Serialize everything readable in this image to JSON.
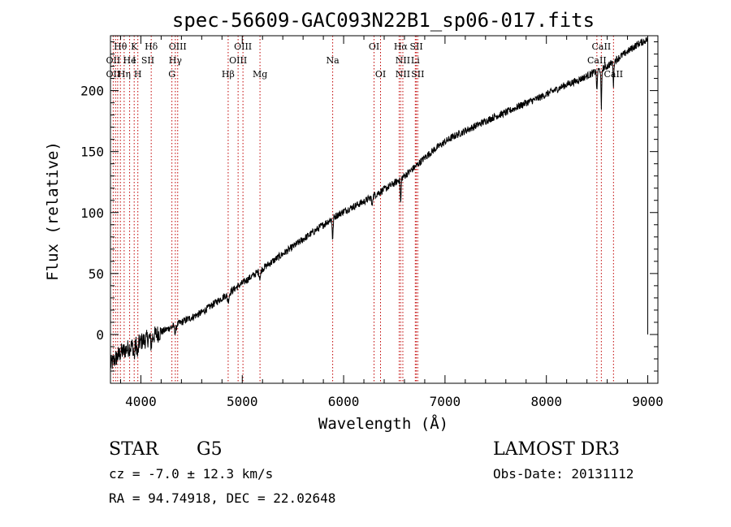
{
  "chart_data": {
    "type": "line",
    "title": "spec-56609-GAC093N22B1_sp06-017.fits",
    "xlabel": "Wavelength (Å)",
    "ylabel": "Flux (relative)",
    "xlim": [
      3700,
      9100
    ],
    "ylim": [
      -40,
      245
    ],
    "xticks": [
      4000,
      5000,
      6000,
      7000,
      8000,
      9000
    ],
    "yticks": [
      0,
      50,
      100,
      150,
      200
    ],
    "grid": false,
    "series": [
      {
        "name": "spectrum",
        "color": "#000000",
        "anchors": [
          [
            3700,
            -25
          ],
          [
            3750,
            -20
          ],
          [
            3800,
            -15
          ],
          [
            3900,
            -10
          ],
          [
            4000,
            -6
          ],
          [
            4100,
            -2
          ],
          [
            4200,
            2
          ],
          [
            4300,
            6
          ],
          [
            4400,
            10
          ],
          [
            4500,
            14
          ],
          [
            4600,
            18
          ],
          [
            4700,
            24
          ],
          [
            4800,
            30
          ],
          [
            4900,
            36
          ],
          [
            5000,
            42
          ],
          [
            5100,
            48
          ],
          [
            5200,
            54
          ],
          [
            5300,
            60
          ],
          [
            5400,
            66
          ],
          [
            5500,
            72
          ],
          [
            5600,
            78
          ],
          [
            5700,
            84
          ],
          [
            5800,
            90
          ],
          [
            5900,
            96
          ],
          [
            6000,
            101
          ],
          [
            6100,
            105
          ],
          [
            6200,
            109
          ],
          [
            6300,
            114
          ],
          [
            6400,
            119
          ],
          [
            6500,
            124
          ],
          [
            6600,
            130
          ],
          [
            6700,
            137
          ],
          [
            6800,
            145
          ],
          [
            6900,
            152
          ],
          [
            7000,
            158
          ],
          [
            7100,
            163
          ],
          [
            7200,
            167
          ],
          [
            7300,
            171
          ],
          [
            7400,
            175
          ],
          [
            7500,
            179
          ],
          [
            7600,
            182
          ],
          [
            7700,
            186
          ],
          [
            7800,
            190
          ],
          [
            7900,
            193
          ],
          [
            8000,
            197
          ],
          [
            8100,
            201
          ],
          [
            8200,
            205
          ],
          [
            8300,
            208
          ],
          [
            8400,
            212
          ],
          [
            8500,
            216
          ],
          [
            8600,
            220
          ],
          [
            8700,
            226
          ],
          [
            8800,
            232
          ],
          [
            8900,
            238
          ],
          [
            8950,
            240
          ],
          [
            9000,
            242
          ]
        ],
        "absorption": [
          {
            "wave": 3934,
            "depth": 10,
            "width": 8
          },
          {
            "wave": 3969,
            "depth": 10,
            "width": 8
          },
          {
            "wave": 4102,
            "depth": 6,
            "width": 10
          },
          {
            "wave": 4340,
            "depth": 6,
            "width": 10
          },
          {
            "wave": 4861,
            "depth": 6,
            "width": 12
          },
          {
            "wave": 5175,
            "depth": 6,
            "width": 10
          },
          {
            "wave": 5892,
            "depth": 18,
            "width": 6
          },
          {
            "wave": 6280,
            "depth": 8,
            "width": 6
          },
          {
            "wave": 6563,
            "depth": 20,
            "width": 6
          },
          {
            "wave": 8498,
            "depth": 18,
            "width": 5
          },
          {
            "wave": 8542,
            "depth": 35,
            "width": 5
          },
          {
            "wave": 8662,
            "depth": 20,
            "width": 5
          }
        ],
        "noise_amplitude": 3
      }
    ],
    "line_markers": {
      "color": "#c00000",
      "waves": [
        3727,
        3750,
        3771,
        3798,
        3835,
        3889,
        3934,
        3970,
        4102,
        4306,
        4340,
        4363,
        4861,
        4959,
        5007,
        5175,
        5892,
        6300,
        6364,
        6548,
        6563,
        6584,
        6707,
        6717,
        6731,
        8498,
        8542,
        8662
      ]
    },
    "line_labels": [
      {
        "text": "Hθ",
        "wave": 3798,
        "row": 1
      },
      {
        "text": "K",
        "wave": 3934,
        "row": 1
      },
      {
        "text": "Hδ",
        "wave": 4102,
        "row": 1
      },
      {
        "text": "OIII",
        "wave": 4363,
        "row": 1
      },
      {
        "text": "OIII",
        "wave": 5007,
        "row": 1
      },
      {
        "text": "OI",
        "wave": 6300,
        "row": 1
      },
      {
        "text": "Hα",
        "wave": 6563,
        "row": 1
      },
      {
        "text": "SII",
        "wave": 6717,
        "row": 1
      },
      {
        "text": "CaII",
        "wave": 8542,
        "row": 1
      },
      {
        "text": "OII",
        "wave": 3727,
        "row": 2
      },
      {
        "text": "He",
        "wave": 3889,
        "row": 2
      },
      {
        "text": "I",
        "wave": 3934,
        "row": 2
      },
      {
        "text": "SII",
        "wave": 4068,
        "row": 2
      },
      {
        "text": "Hγ",
        "wave": 4340,
        "row": 2
      },
      {
        "text": "OIII",
        "wave": 4959,
        "row": 2
      },
      {
        "text": "Na",
        "wave": 5892,
        "row": 2
      },
      {
        "text": "NII",
        "wave": 6584,
        "row": 2
      },
      {
        "text": "Li",
        "wave": 6707,
        "row": 2
      },
      {
        "text": "CaII",
        "wave": 8498,
        "row": 2
      },
      {
        "text": "OII",
        "wave": 3727,
        "row": 3
      },
      {
        "text": "Hη",
        "wave": 3835,
        "row": 3
      },
      {
        "text": "H",
        "wave": 3970,
        "row": 3
      },
      {
        "text": "G",
        "wave": 4306,
        "row": 3
      },
      {
        "text": "Hβ",
        "wave": 4861,
        "row": 3
      },
      {
        "text": "Mg",
        "wave": 5175,
        "row": 3
      },
      {
        "text": "OI",
        "wave": 6364,
        "row": 3
      },
      {
        "text": "NII",
        "wave": 6584,
        "row": 3
      },
      {
        "text": "SII",
        "wave": 6731,
        "row": 3
      },
      {
        "text": "CaII",
        "wave": 8662,
        "row": 3
      }
    ]
  },
  "info": {
    "object_class": "STAR",
    "subclass": "G5",
    "survey": "LAMOST DR3",
    "cz": "cz = -7.0 ± 12.3 km/s",
    "obs_date": "Obs-Date: 20131112",
    "coords": "RA =  94.74918, DEC =  22.02648"
  }
}
